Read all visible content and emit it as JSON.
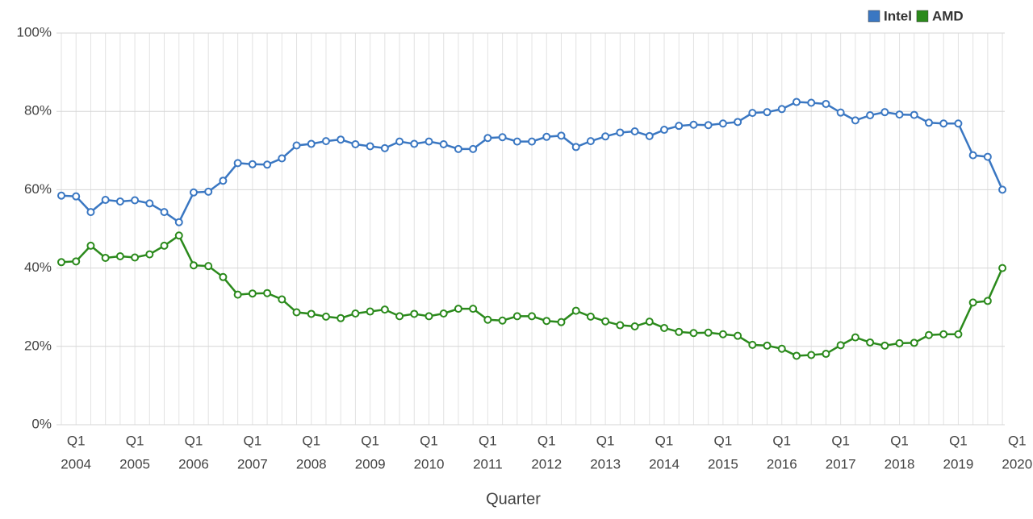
{
  "chart_data": {
    "type": "line",
    "x_label": "Quarter",
    "categories": [
      null,
      [
        "Q1",
        "2004"
      ],
      null,
      null,
      null,
      [
        "Q1",
        "2005"
      ],
      null,
      null,
      null,
      [
        "Q1",
        "2006"
      ],
      null,
      null,
      null,
      [
        "Q1",
        "2007"
      ],
      null,
      null,
      null,
      [
        "Q1",
        "2008"
      ],
      null,
      null,
      null,
      [
        "Q1",
        "2009"
      ],
      null,
      null,
      null,
      [
        "Q1",
        "2010"
      ],
      null,
      null,
      null,
      [
        "Q1",
        "2011"
      ],
      null,
      null,
      null,
      [
        "Q1",
        "2012"
      ],
      null,
      null,
      null,
      [
        "Q1",
        "2013"
      ],
      null,
      null,
      null,
      [
        "Q1",
        "2014"
      ],
      null,
      null,
      null,
      [
        "Q1",
        "2015"
      ],
      null,
      null,
      null,
      [
        "Q1",
        "2016"
      ],
      null,
      null,
      null,
      [
        "Q1",
        "2017"
      ],
      null,
      null,
      null,
      [
        "Q1",
        "2018"
      ],
      null,
      null,
      null,
      [
        "Q1",
        "2019"
      ],
      null,
      null,
      null,
      [
        "Q1",
        "2020"
      ]
    ],
    "series": [
      {
        "name": "Intel",
        "color": "#3a77c2",
        "values": [
          58.5,
          58.3,
          54.3,
          57.4,
          57.0,
          57.3,
          56.5,
          54.3,
          51.7,
          59.3,
          59.5,
          62.3,
          66.8,
          66.5,
          66.4,
          68.0,
          71.3,
          71.7,
          72.4,
          72.8,
          71.6,
          71.1,
          70.6,
          72.3,
          71.7,
          72.3,
          71.6,
          70.4,
          70.4,
          73.2,
          73.4,
          72.3,
          72.3,
          73.5,
          73.8,
          70.9,
          72.4,
          73.6,
          74.6,
          74.9,
          73.7,
          75.3,
          76.3,
          76.6,
          76.5,
          76.9,
          77.3,
          79.6,
          79.8,
          80.6,
          82.4,
          82.2,
          81.9,
          79.7,
          77.7,
          79.0,
          79.8,
          79.2,
          79.1,
          77.1,
          76.9,
          76.9,
          68.8,
          68.4,
          60.0,
          null
        ]
      },
      {
        "name": "AMD",
        "color": "#2b8a1c",
        "values": [
          41.5,
          41.7,
          45.7,
          42.6,
          43.0,
          42.7,
          43.5,
          45.7,
          48.3,
          40.7,
          40.5,
          37.7,
          33.2,
          33.5,
          33.6,
          32.0,
          28.7,
          28.3,
          27.6,
          27.2,
          28.4,
          28.9,
          29.4,
          27.7,
          28.3,
          27.7,
          28.4,
          29.6,
          29.6,
          26.8,
          26.6,
          27.7,
          27.7,
          26.5,
          26.2,
          29.1,
          27.6,
          26.4,
          25.4,
          25.1,
          26.3,
          24.7,
          23.7,
          23.4,
          23.5,
          23.1,
          22.7,
          20.4,
          20.2,
          19.4,
          17.6,
          17.8,
          18.1,
          20.3,
          22.3,
          21.0,
          20.2,
          20.8,
          20.9,
          22.9,
          23.1,
          23.1,
          31.2,
          31.6,
          40.0,
          null
        ]
      }
    ],
    "ylim": [
      0,
      100
    ],
    "yticks": [
      {
        "value": 0,
        "label": "0%"
      },
      {
        "value": 20,
        "label": "20%"
      },
      {
        "value": 40,
        "label": "40%"
      },
      {
        "value": 60,
        "label": "60%"
      },
      {
        "value": 80,
        "label": "80%"
      },
      {
        "value": 100,
        "label": "100%"
      }
    ],
    "grid": true,
    "legend": "top-right"
  }
}
